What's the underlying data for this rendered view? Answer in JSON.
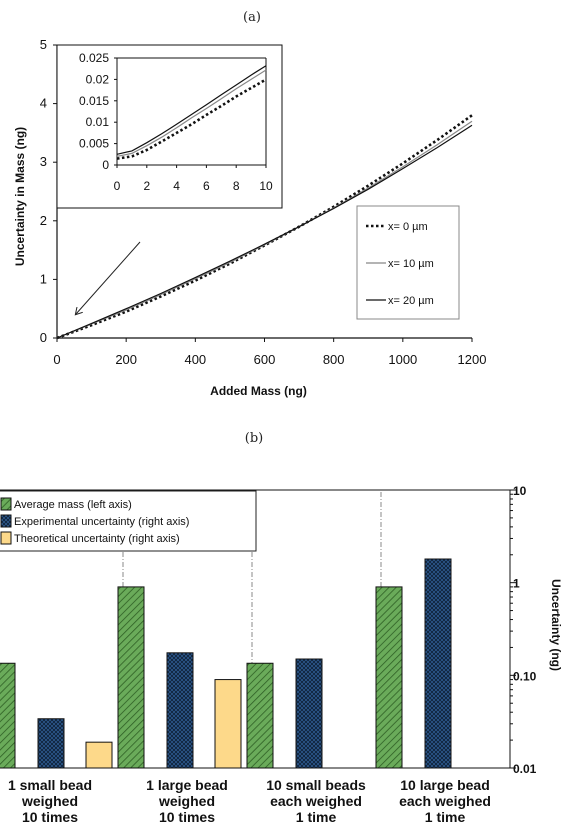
{
  "panel_labels": {
    "a": "(a)",
    "b": "(b)"
  },
  "chart_data": [
    {
      "type": "line",
      "xlabel": "Added Mass (ng)",
      "ylabel": "Uncertainty in Mass (ng)",
      "xlim": [
        0,
        1200
      ],
      "ylim": [
        0,
        5
      ],
      "xticks": [
        "0",
        "200",
        "400",
        "600",
        "800",
        "1000",
        "1200"
      ],
      "yticks": [
        "0",
        "1",
        "2",
        "3",
        "4",
        "5"
      ],
      "legend_position": "right",
      "series": [
        {
          "name": "x= 0 µm",
          "style": "dotted",
          "color": "#111111",
          "x": [
            0,
            100,
            200,
            300,
            400,
            500,
            600,
            700,
            800,
            900,
            1000,
            1100,
            1200
          ],
          "y": [
            0.0,
            0.22,
            0.45,
            0.71,
            0.98,
            1.27,
            1.58,
            1.9,
            2.24,
            2.6,
            2.98,
            3.38,
            3.8
          ]
        },
        {
          "name": "x= 10 µm",
          "style": "solid",
          "color": "#888888",
          "x": [
            0,
            100,
            200,
            300,
            400,
            500,
            600,
            700,
            800,
            900,
            1000,
            1100,
            1200
          ],
          "y": [
            0.0,
            0.24,
            0.48,
            0.74,
            1.01,
            1.29,
            1.59,
            1.9,
            2.22,
            2.56,
            2.92,
            3.3,
            3.7
          ]
        },
        {
          "name": "x= 20 µm",
          "style": "solid",
          "color": "#111111",
          "x": [
            0,
            100,
            200,
            300,
            400,
            500,
            600,
            700,
            800,
            900,
            1000,
            1100,
            1200
          ],
          "y": [
            0.0,
            0.25,
            0.5,
            0.76,
            1.03,
            1.31,
            1.6,
            1.9,
            2.21,
            2.54,
            2.89,
            3.25,
            3.63
          ]
        }
      ],
      "inset": {
        "xlim": [
          0,
          10
        ],
        "ylim": [
          0,
          0.025
        ],
        "xticks": [
          "0",
          "2",
          "4",
          "6",
          "8",
          "10"
        ],
        "yticks": [
          "0",
          "0.005",
          "0.01",
          "0.015",
          "0.02",
          "0.025"
        ],
        "series": [
          {
            "name": "x= 0 µm",
            "x": [
              0,
              1,
              2,
              3,
              4,
              5,
              6,
              7,
              8,
              9,
              10
            ],
            "y": [
              0.0015,
              0.002,
              0.0035,
              0.0055,
              0.0075,
              0.0095,
              0.0117,
              0.0138,
              0.016,
              0.018,
              0.02
            ]
          },
          {
            "name": "x= 10 µm",
            "x": [
              0,
              1,
              2,
              3,
              4,
              5,
              6,
              7,
              8,
              9,
              10
            ],
            "y": [
              0.002,
              0.0027,
              0.0045,
              0.0065,
              0.0087,
              0.011,
              0.0132,
              0.0155,
              0.0178,
              0.02,
              0.0222
            ]
          },
          {
            "name": "x= 20 µm",
            "x": [
              0,
              1,
              2,
              3,
              4,
              5,
              6,
              7,
              8,
              9,
              10
            ],
            "y": [
              0.0025,
              0.0033,
              0.0052,
              0.0073,
              0.0095,
              0.0118,
              0.0141,
              0.0164,
              0.0187,
              0.021,
              0.0232
            ]
          }
        ]
      }
    },
    {
      "type": "bar",
      "y2label": "Uncertainty (ng)",
      "y2scale": "log",
      "y2lim": [
        0.01,
        10
      ],
      "y2ticks": [
        "0.01",
        "0.10",
        "1",
        "10"
      ],
      "legend_position": "top-left",
      "categories": [
        "1 small bead\nweighed\n10 times",
        "1 large bead\nweighed\n10 times",
        "10 small beads\neach weighed\n1 time",
        "10 large bead\neach weighed\n1 time"
      ],
      "series": [
        {
          "name": "Average mass (left axis)",
          "color": "#6aab5a",
          "pattern": "diagonal-hatch",
          "values": [
            0.135,
            0.9,
            0.135,
            0.9
          ]
        },
        {
          "name": "Experimental uncertainty (right axis)",
          "color": "#2d5a8f",
          "pattern": "crosshatch",
          "values": [
            0.034,
            0.175,
            0.15,
            1.8
          ]
        },
        {
          "name": "Theoretical uncertainty (right axis)",
          "color": "#fdd98a",
          "pattern": "solid",
          "values": [
            0.019,
            0.09,
            null,
            null
          ]
        }
      ]
    }
  ]
}
